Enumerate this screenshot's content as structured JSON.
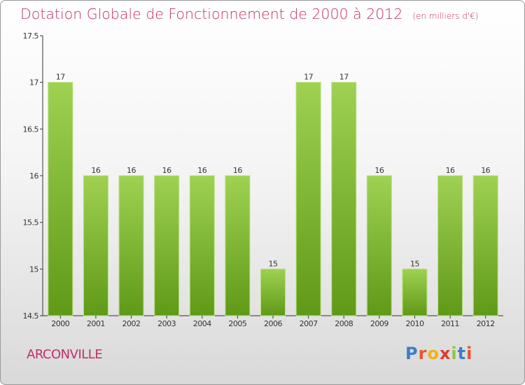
{
  "title": "Dotation Globale de Fonctionnement de 2000 à 2012",
  "unit_note": "(en milliers d'€)",
  "commune": "ARCONVILLE",
  "logo": {
    "text": "Proxiti",
    "letter_colors": [
      "#3a7fc4",
      "#e8542c",
      "#f2b214",
      "#e03c2c",
      "#8cc63f",
      "#3a7fc4",
      "#e8542c"
    ]
  },
  "colors": {
    "title": "#c0306a",
    "bar_top": "#9fd152",
    "bar_bottom": "#5f9a17",
    "axis": "#333333"
  },
  "chart_data": {
    "type": "bar",
    "categories": [
      "2000",
      "2001",
      "2002",
      "2003",
      "2004",
      "2005",
      "2006",
      "2007",
      "2008",
      "2009",
      "2010",
      "2011",
      "2012"
    ],
    "values": [
      17,
      16,
      16,
      16,
      16,
      16,
      15,
      17,
      17,
      16,
      15,
      16,
      16
    ],
    "value_labels": [
      "17",
      "16",
      "16",
      "16",
      "16",
      "16",
      "15",
      "17",
      "17",
      "16",
      "15",
      "16",
      "16"
    ],
    "ylim": [
      14.5,
      17.5
    ],
    "yticks": [
      14.5,
      15,
      15.5,
      16,
      16.5,
      17,
      17.5
    ],
    "ytick_labels": [
      "14.5",
      "15",
      "15.5",
      "16",
      "16.5",
      "17",
      "17.5"
    ],
    "grid": false,
    "legend": "none"
  }
}
